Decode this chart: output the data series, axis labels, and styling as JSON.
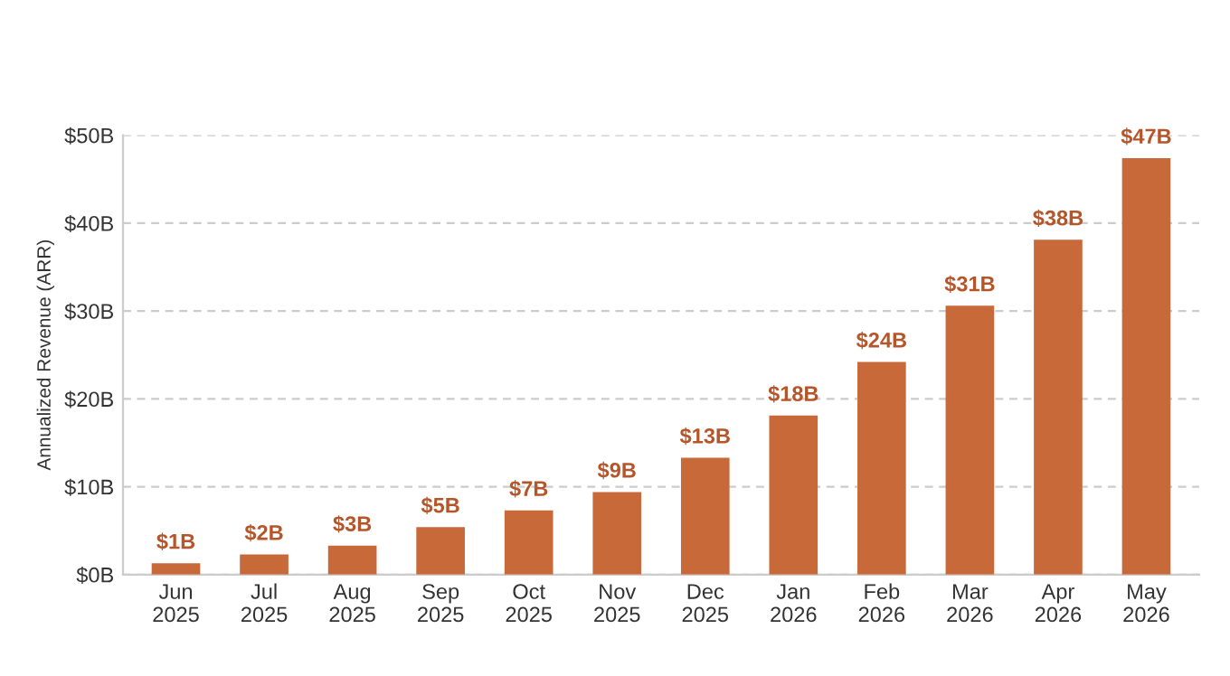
{
  "chart_data": {
    "type": "bar",
    "ylabel": "Annualized Revenue (ARR)",
    "categories": [
      "Jun\n2025",
      "Jul\n2025",
      "Aug\n2025",
      "Sep\n2025",
      "Oct\n2025",
      "Nov\n2025",
      "Dec\n2025",
      "Jan\n2026",
      "Feb\n2026",
      "Mar\n2026",
      "Apr\n2026",
      "May\n2026"
    ],
    "values": [
      1.3,
      2.3,
      3.3,
      5.4,
      7.3,
      9.4,
      13.3,
      18.1,
      24.2,
      30.6,
      38.1,
      47.4
    ],
    "value_labels": [
      "$1B",
      "$2B",
      "$3B",
      "$5B",
      "$7B",
      "$9B",
      "$13B",
      "$18B",
      "$24B",
      "$31B",
      "$38B",
      "$47B"
    ],
    "color": "#c8693a",
    "ylim": [
      0,
      50
    ],
    "yticks": [
      {
        "value": 0,
        "label": "$0B"
      },
      {
        "value": 10,
        "label": "$10B"
      },
      {
        "value": 20,
        "label": "$20B"
      },
      {
        "value": 30,
        "label": "$30B"
      },
      {
        "value": 40,
        "label": "$40B"
      },
      {
        "value": 50,
        "label": "$50B"
      }
    ],
    "grid": "y"
  }
}
